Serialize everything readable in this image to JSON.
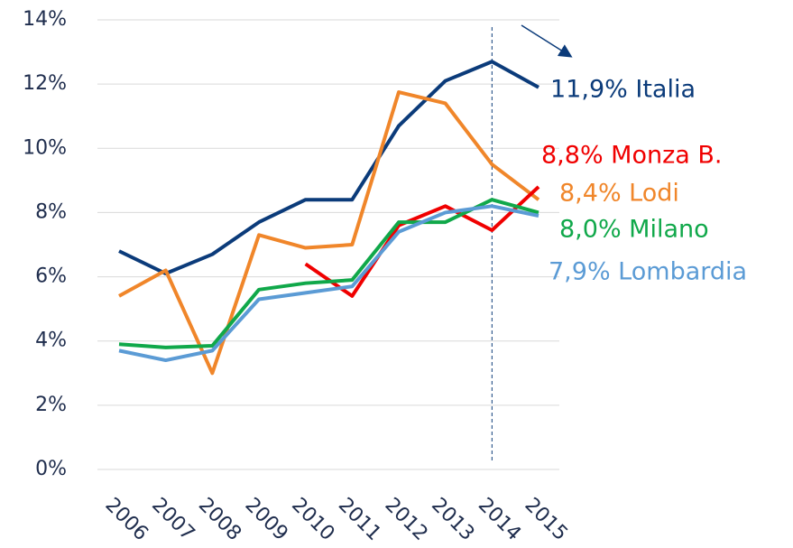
{
  "chart_data": {
    "type": "line",
    "categories": [
      "2006",
      "2007",
      "2008",
      "2009",
      "2010",
      "2011",
      "2012",
      "2013",
      "2014",
      "2015"
    ],
    "series": [
      {
        "name": "Italia",
        "label": "11,9% Italia",
        "color": "#0b3b7a",
        "values": [
          6.8,
          6.1,
          6.7,
          7.7,
          8.4,
          8.4,
          10.7,
          12.1,
          12.7,
          11.9
        ]
      },
      {
        "name": "Lodi",
        "label": "8,4% Lodi",
        "color": "#f0862a",
        "values": [
          5.4,
          6.2,
          3.0,
          7.3,
          6.9,
          7.0,
          11.75,
          11.4,
          9.5,
          8.4
        ]
      },
      {
        "name": "Monza B.",
        "label": "8,8% Monza B.",
        "color": "#f00000",
        "values": [
          null,
          null,
          null,
          null,
          6.4,
          5.4,
          7.6,
          8.2,
          7.45,
          8.8
        ]
      },
      {
        "name": "Milano",
        "label": "8,0% Milano",
        "color": "#10a84a",
        "values": [
          3.9,
          3.8,
          3.85,
          5.6,
          5.8,
          5.9,
          7.7,
          7.7,
          8.4,
          8.0
        ]
      },
      {
        "name": "Lombardia",
        "label": "7,9% Lombardia",
        "color": "#5b9bd5",
        "values": [
          3.7,
          3.4,
          3.7,
          5.3,
          5.5,
          5.7,
          7.4,
          8.0,
          8.2,
          7.9
        ]
      }
    ],
    "ylim": [
      0,
      14
    ],
    "yticks": [
      {
        "value": 0,
        "label": "0%"
      },
      {
        "value": 2,
        "label": "2%"
      },
      {
        "value": 4,
        "label": "4%"
      },
      {
        "value": 6,
        "label": "6%"
      },
      {
        "value": 8,
        "label": "8%"
      },
      {
        "value": 10,
        "label": "10%"
      },
      {
        "value": 12,
        "label": "12%"
      },
      {
        "value": 14,
        "label": "14%"
      }
    ],
    "grid": true,
    "vline": "2014"
  }
}
